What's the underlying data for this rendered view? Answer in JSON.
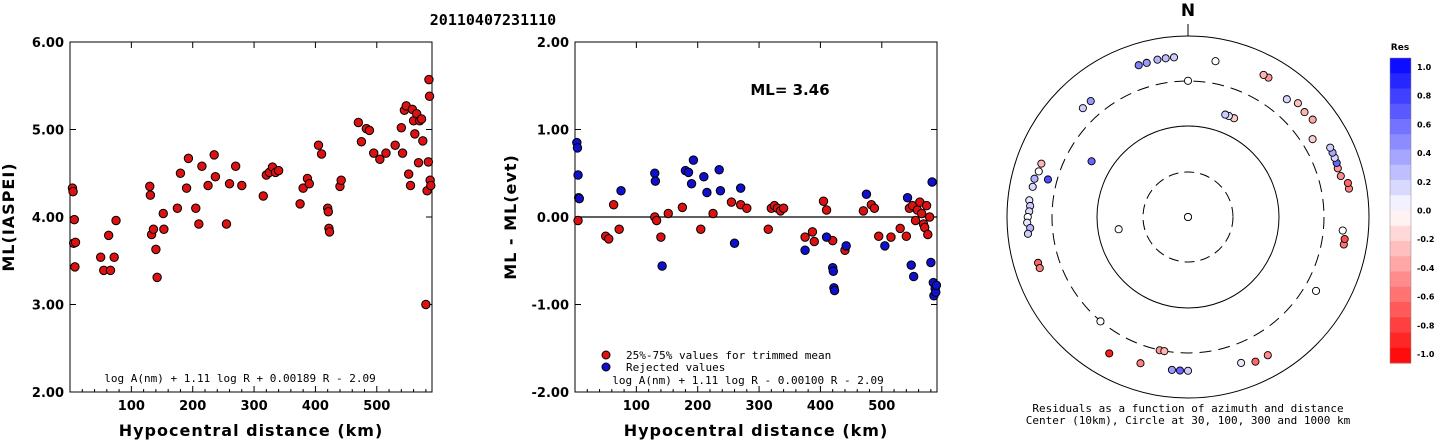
{
  "header": {
    "event_id": "20110407231110"
  },
  "colors": {
    "accepted": "#dd1111",
    "rejected": "#1010cc",
    "outline": "#000000"
  },
  "chart_data": [
    {
      "type": "scatter",
      "id": "ml-vs-distance",
      "xlabel": "Hypocentral distance (km)",
      "ylabel": "ML(IASPEI)",
      "xlim": [
        0,
        590
      ],
      "ylim": [
        2.0,
        6.0
      ],
      "xticks": [
        {
          "v": 100,
          "t": "100"
        },
        {
          "v": 200,
          "t": "200"
        },
        {
          "v": 300,
          "t": "300"
        },
        {
          "v": 400,
          "t": "400"
        },
        {
          "v": 500,
          "t": "500"
        }
      ],
      "yticks": [
        {
          "v": 2,
          "t": "2.00"
        },
        {
          "v": 3,
          "t": "3.00"
        },
        {
          "v": 4,
          "t": "4.00"
        },
        {
          "v": 5,
          "t": "5.00"
        },
        {
          "v": 6,
          "t": "6.00"
        }
      ],
      "formula": "log A(nm) + 1.11 log R + 0.00189 R - 2.09",
      "points": [
        [
          4,
          4.33
        ],
        [
          5,
          4.29
        ],
        [
          6,
          3.7
        ],
        [
          7,
          3.97
        ],
        [
          8,
          3.43
        ],
        [
          9,
          3.71
        ],
        [
          50,
          3.54
        ],
        [
          55,
          3.39
        ],
        [
          63,
          3.79
        ],
        [
          66,
          3.39
        ],
        [
          72,
          3.54
        ],
        [
          75,
          3.96
        ],
        [
          130,
          4.35
        ],
        [
          131,
          4.25
        ],
        [
          133,
          3.8
        ],
        [
          136,
          3.86
        ],
        [
          140,
          3.63
        ],
        [
          142,
          3.31
        ],
        [
          152,
          4.04
        ],
        [
          153,
          3.86
        ],
        [
          175,
          4.1
        ],
        [
          180,
          4.5
        ],
        [
          190,
          4.33
        ],
        [
          193,
          4.67
        ],
        [
          205,
          4.1
        ],
        [
          210,
          3.92
        ],
        [
          215,
          4.58
        ],
        [
          225,
          4.36
        ],
        [
          235,
          4.71
        ],
        [
          237,
          4.46
        ],
        [
          255,
          3.92
        ],
        [
          260,
          4.38
        ],
        [
          270,
          4.58
        ],
        [
          280,
          4.36
        ],
        [
          315,
          4.24
        ],
        [
          320,
          4.48
        ],
        [
          325,
          4.51
        ],
        [
          330,
          4.57
        ],
        [
          335,
          4.51
        ],
        [
          340,
          4.53
        ],
        [
          375,
          4.15
        ],
        [
          380,
          4.33
        ],
        [
          387,
          4.44
        ],
        [
          390,
          4.38
        ],
        [
          405,
          4.82
        ],
        [
          410,
          4.72
        ],
        [
          420,
          4.1
        ],
        [
          421,
          4.06
        ],
        [
          422,
          3.87
        ],
        [
          423,
          3.83
        ],
        [
          440,
          4.35
        ],
        [
          442,
          4.42
        ],
        [
          470,
          5.08
        ],
        [
          475,
          4.86
        ],
        [
          483,
          5.01
        ],
        [
          488,
          4.99
        ],
        [
          495,
          4.73
        ],
        [
          505,
          4.66
        ],
        [
          515,
          4.73
        ],
        [
          530,
          4.82
        ],
        [
          540,
          5.02
        ],
        [
          542,
          4.73
        ],
        [
          545,
          5.22
        ],
        [
          548,
          5.27
        ],
        [
          552,
          4.49
        ],
        [
          555,
          4.36
        ],
        [
          558,
          5.23
        ],
        [
          560,
          5.1
        ],
        [
          562,
          4.95
        ],
        [
          565,
          5.18
        ],
        [
          568,
          4.62
        ],
        [
          570,
          5.1
        ],
        [
          573,
          5.12
        ],
        [
          575,
          4.87
        ],
        [
          580,
          3.0
        ],
        [
          582,
          4.3
        ],
        [
          584,
          4.63
        ],
        [
          585,
          5.57
        ],
        [
          586,
          5.38
        ],
        [
          587,
          4.42
        ],
        [
          588,
          4.36
        ]
      ]
    },
    {
      "type": "scatter",
      "id": "residual-vs-distance",
      "xlabel": "Hypocentral distance (km)",
      "ylabel": "ML - ML(evt)",
      "xlim": [
        0,
        590
      ],
      "ylim": [
        -2.0,
        2.0
      ],
      "xticks": [
        {
          "v": 100,
          "t": "100"
        },
        {
          "v": 200,
          "t": "200"
        },
        {
          "v": 300,
          "t": "300"
        },
        {
          "v": 400,
          "t": "400"
        },
        {
          "v": 500,
          "t": "500"
        }
      ],
      "yticks": [
        {
          "v": -2,
          "t": "-2.00"
        },
        {
          "v": -1,
          "t": "-1.00"
        },
        {
          "v": 0,
          "t": "0.00"
        },
        {
          "v": 1,
          "t": "1.00"
        },
        {
          "v": 2,
          "t": "2.00"
        }
      ],
      "annotation": "ML= 3.46",
      "legend": [
        "25%-75% values for trimmed mean",
        "Rejected values"
      ],
      "formula": "log A(nm) + 1.11 log R - 0.00100 R - 2.09",
      "accepted": [
        [
          5,
          -0.04
        ],
        [
          50,
          -0.22
        ],
        [
          55,
          -0.25
        ],
        [
          63,
          0.14
        ],
        [
          72,
          -0.14
        ],
        [
          130,
          0.0
        ],
        [
          133,
          -0.04
        ],
        [
          140,
          -0.23
        ],
        [
          152,
          0.04
        ],
        [
          175,
          0.11
        ],
        [
          205,
          -0.14
        ],
        [
          225,
          0.04
        ],
        [
          255,
          0.17
        ],
        [
          270,
          0.14
        ],
        [
          280,
          0.1
        ],
        [
          315,
          -0.14
        ],
        [
          320,
          0.1
        ],
        [
          325,
          0.13
        ],
        [
          330,
          0.1
        ],
        [
          335,
          0.07
        ],
        [
          340,
          0.1
        ],
        [
          375,
          -0.23
        ],
        [
          387,
          -0.17
        ],
        [
          390,
          -0.28
        ],
        [
          405,
          0.18
        ],
        [
          410,
          0.08
        ],
        [
          420,
          -0.27
        ],
        [
          440,
          -0.38
        ],
        [
          470,
          0.07
        ],
        [
          483,
          0.14
        ],
        [
          488,
          0.1
        ],
        [
          495,
          -0.22
        ],
        [
          515,
          -0.23
        ],
        [
          530,
          -0.13
        ],
        [
          540,
          -0.22
        ],
        [
          545,
          0.1
        ],
        [
          550,
          0.13
        ],
        [
          555,
          -0.04
        ],
        [
          558,
          0.08
        ],
        [
          562,
          0.17
        ],
        [
          565,
          0.04
        ],
        [
          568,
          -0.08
        ],
        [
          570,
          -0.12
        ],
        [
          573,
          0.13
        ],
        [
          575,
          -0.2
        ],
        [
          578,
          0.0
        ]
      ],
      "rejected": [
        [
          3,
          0.85
        ],
        [
          4,
          0.79
        ],
        [
          5,
          0.48
        ],
        [
          6,
          0.22
        ],
        [
          7,
          0.21
        ],
        [
          75,
          0.3
        ],
        [
          130,
          0.5
        ],
        [
          131,
          0.41
        ],
        [
          142,
          -0.56
        ],
        [
          180,
          0.53
        ],
        [
          185,
          0.51
        ],
        [
          190,
          0.38
        ],
        [
          193,
          0.65
        ],
        [
          210,
          0.46
        ],
        [
          215,
          0.28
        ],
        [
          235,
          0.54
        ],
        [
          237,
          0.3
        ],
        [
          260,
          -0.3
        ],
        [
          270,
          0.33
        ],
        [
          375,
          -0.38
        ],
        [
          410,
          -0.23
        ],
        [
          420,
          -0.58
        ],
        [
          421,
          -0.62
        ],
        [
          422,
          -0.81
        ],
        [
          423,
          -0.84
        ],
        [
          442,
          -0.33
        ],
        [
          475,
          0.26
        ],
        [
          505,
          -0.33
        ],
        [
          542,
          0.22
        ],
        [
          548,
          -0.55
        ],
        [
          552,
          -0.68
        ],
        [
          580,
          -0.52
        ],
        [
          582,
          0.4
        ],
        [
          584,
          -0.75
        ],
        [
          585,
          -0.9
        ],
        [
          587,
          -0.82
        ],
        [
          588,
          -0.86
        ],
        [
          589,
          -0.78
        ]
      ]
    },
    {
      "type": "scatter",
      "id": "azimuth-residuals",
      "polar": true,
      "north_label": "N",
      "caption": [
        "Residuals as a function of azimuth and distance",
        "Center (10km), Circle at 30, 100, 300 and 1000 km"
      ],
      "colorbar": {
        "title": "Res",
        "ticks": [
          "1.0",
          "0.8",
          "0.6",
          "0.4",
          "0.2",
          "0.0",
          "-0.2",
          "-0.4",
          "-0.6",
          "-0.8",
          "-1.0"
        ]
      },
      "stations": [
        {
          "az": 0,
          "dist_km": 10,
          "res": 0.1
        },
        {
          "az": 5,
          "dist_km": 10,
          "res": 0.0
        },
        {
          "az": 10,
          "dist_km": 560,
          "res": 0.0
        },
        {
          "az": 0,
          "dist_km": 320,
          "res": 0.0
        },
        {
          "az": 355,
          "dist_km": 590,
          "res": 0.2
        },
        {
          "az": 352,
          "dist_km": 590,
          "res": 0.25
        },
        {
          "az": 349,
          "dist_km": 590,
          "res": 0.3
        },
        {
          "az": 345,
          "dist_km": 580,
          "res": 0.4
        },
        {
          "az": 342,
          "dist_km": 580,
          "res": 0.5
        },
        {
          "az": 320,
          "dist_km": 470,
          "res": 0.4
        },
        {
          "az": 316,
          "dist_km": 470,
          "res": 0.2
        },
        {
          "az": 300,
          "dist_km": 170,
          "res": 0.6
        },
        {
          "az": 290,
          "dist_km": 530,
          "res": -0.3
        },
        {
          "az": 287,
          "dist_km": 530,
          "res": 0.0
        },
        {
          "az": 284,
          "dist_km": 560,
          "res": 0.3
        },
        {
          "az": 281,
          "dist_km": 560,
          "res": 0.15
        },
        {
          "az": 285,
          "dist_km": 400,
          "res": 0.7
        },
        {
          "az": 276,
          "dist_km": 580,
          "res": 0.1
        },
        {
          "az": 274,
          "dist_km": 560,
          "res": 0.2
        },
        {
          "az": 272,
          "dist_km": 570,
          "res": 0.15
        },
        {
          "az": 270,
          "dist_km": 590,
          "res": 0.0
        },
        {
          "az": 268,
          "dist_km": 600,
          "res": 0.1
        },
        {
          "az": 266,
          "dist_km": 560,
          "res": 0.3
        },
        {
          "az": 264,
          "dist_km": 600,
          "res": 0.2
        },
        {
          "az": 260,
          "dist_km": 60,
          "res": 0.0
        },
        {
          "az": 253,
          "dist_km": 540,
          "res": -0.6
        },
        {
          "az": 251,
          "dist_km": 540,
          "res": -0.5
        },
        {
          "az": 220,
          "dist_km": 320,
          "res": 0.0
        },
        {
          "az": 210,
          "dist_km": 550,
          "res": -0.9
        },
        {
          "az": 192,
          "dist_km": 320,
          "res": -0.4
        },
        {
          "az": 190,
          "dist_km": 320,
          "res": -0.3
        },
        {
          "az": 198,
          "dist_km": 500,
          "res": -0.5
        },
        {
          "az": 160,
          "dist_km": 520,
          "res": 0.1
        },
        {
          "az": 155,
          "dist_km": 580,
          "res": -0.6
        },
        {
          "az": 150,
          "dist_km": 580,
          "res": -0.45
        },
        {
          "az": 180,
          "dist_km": 500,
          "res": 0.2
        },
        {
          "az": 183,
          "dist_km": 500,
          "res": 0.6
        },
        {
          "az": 186,
          "dist_km": 500,
          "res": 0.4
        },
        {
          "az": 120,
          "dist_km": 430,
          "res": 0.0
        },
        {
          "az": 100,
          "dist_km": 560,
          "res": -0.55
        },
        {
          "az": 98,
          "dist_km": 560,
          "res": -0.7
        },
        {
          "az": 95,
          "dist_km": 520,
          "res": 0.0
        },
        {
          "az": 80,
          "dist_km": 640,
          "res": -0.5
        },
        {
          "az": 78,
          "dist_km": 640,
          "res": -0.6
        },
        {
          "az": 75,
          "dist_km": 560,
          "res": -0.45
        },
        {
          "az": 72,
          "dist_km": 550,
          "res": -0.4
        },
        {
          "az": 70,
          "dist_km": 560,
          "res": 0.6
        },
        {
          "az": 68,
          "dist_km": 560,
          "res": 0.15
        },
        {
          "az": 66,
          "dist_km": 560,
          "res": 0.35
        },
        {
          "az": 64,
          "dist_km": 560,
          "res": 0.2
        },
        {
          "az": 58,
          "dist_km": 420,
          "res": -0.2
        },
        {
          "az": 52,
          "dist_km": 560,
          "res": -0.35
        },
        {
          "az": 48,
          "dist_km": 540,
          "res": -0.3
        },
        {
          "az": 44,
          "dist_km": 560,
          "res": -0.25
        },
        {
          "az": 40,
          "dist_km": 500,
          "res": 0.15
        },
        {
          "az": 30,
          "dist_km": 600,
          "res": -0.4
        },
        {
          "az": 28,
          "dist_km": 600,
          "res": -0.3
        },
        {
          "az": 25,
          "dist_km": 160,
          "res": -0.2
        },
        {
          "az": 22,
          "dist_km": 160,
          "res": 0.1
        },
        {
          "az": 20,
          "dist_km": 160,
          "res": 0.2
        }
      ]
    }
  ]
}
